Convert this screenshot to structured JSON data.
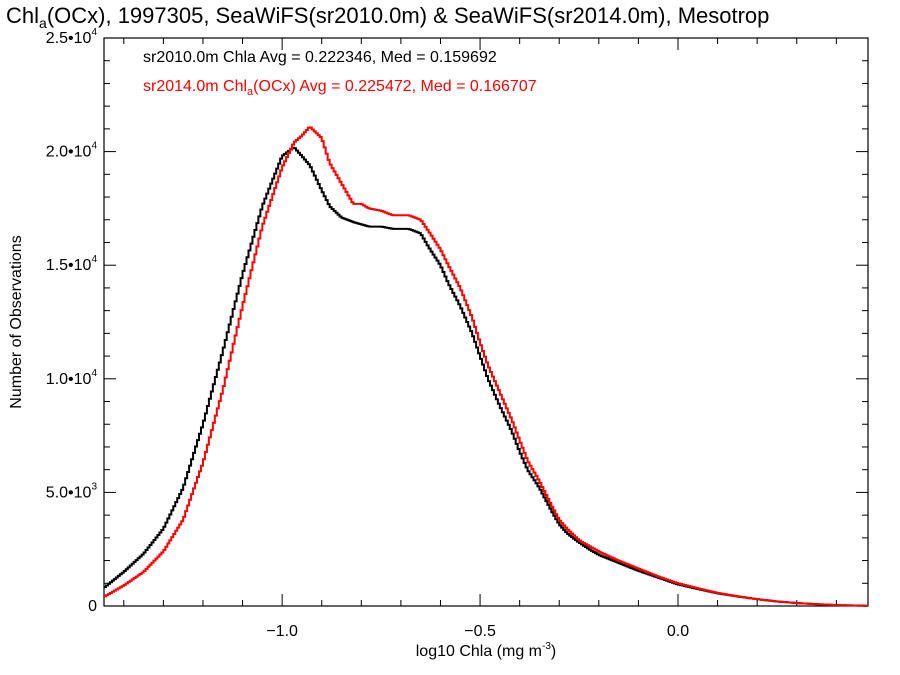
{
  "chart_data": {
    "type": "line",
    "title": {
      "prefix": "Chl",
      "sub": "a",
      "rest": "(OCx), 1997305, SeaWiFS(sr2010.0m) & SeaWiFS(sr2014.0m), Mesotrop"
    },
    "xlabel": {
      "main": "log10 Chla (mg m",
      "sup": "-3",
      "close": ")"
    },
    "ylabel": "Number of Observations",
    "xlim": [
      -1.45,
      0.48
    ],
    "ylim": [
      0,
      25000
    ],
    "grid": false,
    "x_ticks": [
      {
        "value": -1.0,
        "label": "−1.0"
      },
      {
        "value": -0.5,
        "label": "−0.5"
      },
      {
        "value": 0.0,
        "label": "0.0"
      }
    ],
    "y_ticks": [
      {
        "value": 0,
        "label": "0"
      },
      {
        "value": 5000,
        "base": "5.0•10",
        "exp": "3"
      },
      {
        "value": 10000,
        "base": "1.0•10",
        "exp": "4"
      },
      {
        "value": 15000,
        "base": "1.5•10",
        "exp": "4"
      },
      {
        "value": 20000,
        "base": "2.0•10",
        "exp": "4"
      },
      {
        "value": 25000,
        "base": "2.5•10",
        "exp": "4"
      }
    ],
    "annotations": [
      {
        "text": "sr2010.0m Chla Avg = 0.222346, Med = 0.159692",
        "color": "#000000"
      },
      {
        "pre": "sr2014.0m Chl",
        "sub": "a",
        "post": "(OCx) Avg = 0.225472, Med = 0.166707",
        "color": "#ff0000"
      }
    ],
    "x": [
      -1.45,
      -1.4,
      -1.35,
      -1.3,
      -1.25,
      -1.2,
      -1.15,
      -1.1,
      -1.05,
      -1.0,
      -0.97,
      -0.95,
      -0.93,
      -0.9,
      -0.88,
      -0.85,
      -0.82,
      -0.8,
      -0.78,
      -0.75,
      -0.72,
      -0.7,
      -0.68,
      -0.65,
      -0.63,
      -0.6,
      -0.58,
      -0.55,
      -0.52,
      -0.5,
      -0.48,
      -0.45,
      -0.42,
      -0.4,
      -0.38,
      -0.35,
      -0.32,
      -0.3,
      -0.28,
      -0.25,
      -0.22,
      -0.2,
      -0.15,
      -0.1,
      -0.05,
      0.0,
      0.05,
      0.1,
      0.15,
      0.2,
      0.25,
      0.3,
      0.35,
      0.4,
      0.45,
      0.48
    ],
    "series": [
      {
        "color": "#000000",
        "values": [
          800,
          1500,
          2300,
          3400,
          5200,
          8000,
          11200,
          14600,
          17600,
          19800,
          20200,
          19800,
          19400,
          18300,
          17600,
          17100,
          16900,
          16800,
          16700,
          16700,
          16600,
          16600,
          16600,
          16400,
          15800,
          15000,
          14200,
          13200,
          12000,
          11000,
          10000,
          8800,
          7700,
          6800,
          6000,
          5200,
          4200,
          3600,
          3200,
          2800,
          2450,
          2250,
          1900,
          1550,
          1250,
          950,
          750,
          560,
          420,
          300,
          200,
          130,
          80,
          40,
          20,
          10
        ]
      },
      {
        "color": "#ff0000",
        "values": [
          400,
          900,
          1500,
          2400,
          3800,
          6300,
          9500,
          13200,
          16700,
          19300,
          20400,
          20700,
          21100,
          20600,
          19500,
          18600,
          17700,
          17700,
          17500,
          17400,
          17200,
          17200,
          17200,
          17000,
          16500,
          15700,
          15000,
          14000,
          12700,
          11600,
          10600,
          9400,
          8200,
          7300,
          6400,
          5500,
          4450,
          3800,
          3400,
          2900,
          2600,
          2400,
          2000,
          1650,
          1300,
          1000,
          780,
          580,
          430,
          300,
          200,
          130,
          80,
          40,
          20,
          10
        ]
      }
    ]
  }
}
